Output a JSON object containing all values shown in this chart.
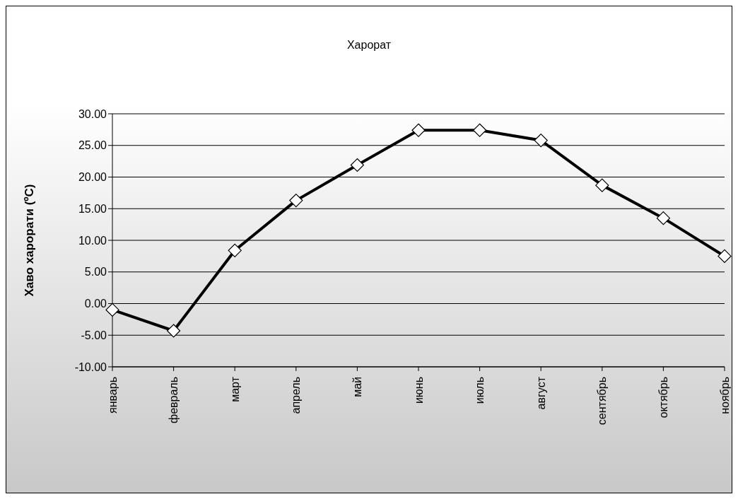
{
  "chart_data": {
    "type": "line",
    "title": "Харорат",
    "ylabel": "Хаво харорати (ºC)",
    "categories": [
      "январь",
      "февраль",
      "март",
      "апрель",
      "май",
      "июнь",
      "июль",
      "август",
      "сентябрь",
      "октябрь",
      "ноябрь"
    ],
    "series": [
      {
        "color": "#000000",
        "values": [
          -1.0,
          -4.3,
          8.4,
          16.3,
          21.9,
          27.4,
          27.4,
          25.8,
          18.7,
          13.5,
          7.5
        ]
      }
    ],
    "ylim": [
      -10,
      30
    ],
    "yticks": [
      {
        "value": -10,
        "label": "-10.00"
      },
      {
        "value": -5,
        "label": "-5.00"
      },
      {
        "value": 0,
        "label": "0.00"
      },
      {
        "value": 5,
        "label": "5.00"
      },
      {
        "value": 10,
        "label": "10.00"
      },
      {
        "value": 15,
        "label": "15.00"
      },
      {
        "value": 20,
        "label": "20.00"
      },
      {
        "value": 25,
        "label": "25.00"
      },
      {
        "value": 30,
        "label": "30.00"
      }
    ],
    "grid": "y",
    "marker": "diamond",
    "line_style": "solid",
    "legend": false
  }
}
